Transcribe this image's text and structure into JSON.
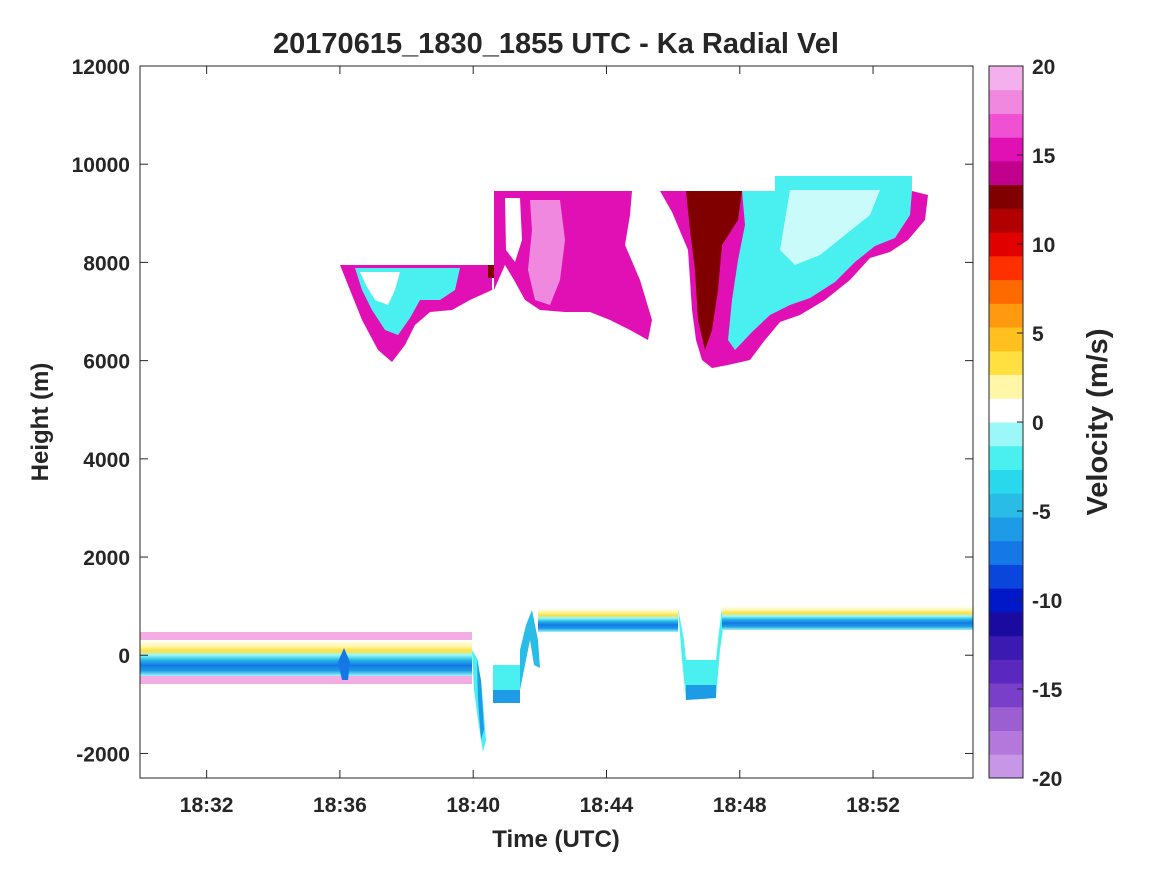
{
  "chart_data": {
    "type": "heatmap",
    "title": "20170615_1830_1855 UTC - Ka Radial Vel",
    "xlabel": "Time (UTC)",
    "ylabel": "Height (m)",
    "xlim": [
      "18:30",
      "18:55"
    ],
    "ylim": [
      -2500,
      12000
    ],
    "xticks": [
      "18:32",
      "18:36",
      "18:40",
      "18:44",
      "18:48",
      "18:52"
    ],
    "yticks": [
      -2000,
      0,
      2000,
      4000,
      6000,
      8000,
      10000,
      12000
    ],
    "grid": false,
    "colorbar": {
      "label": "Velocity (m/s)",
      "range": [
        -20,
        20
      ],
      "ticks": [
        -20,
        -15,
        -10,
        -5,
        0,
        5,
        10,
        15,
        20
      ],
      "colors": [
        "#c896e6",
        "#b478dc",
        "#9b5fd2",
        "#7a3fc8",
        "#5a28be",
        "#3a1ab0",
        "#1a0aa0",
        "#0018c8",
        "#0a46dc",
        "#1478e6",
        "#1e9be6",
        "#28bce6",
        "#2ad8ee",
        "#4af0f0",
        "#9cf8f8",
        "#ffffff",
        "#fff6a8",
        "#ffe040",
        "#ffc020",
        "#ff9a10",
        "#ff6a00",
        "#ff3000",
        "#e00000",
        "#b00000",
        "#800000",
        "#c0008c",
        "#e010b4",
        "#f050d2",
        "#f088e0",
        "#f4b0ec"
      ]
    },
    "features": [
      {
        "name": "boundary layer band",
        "t": [
          "18:30",
          "18:40"
        ],
        "height_range": [
          -500,
          500
        ]
      },
      {
        "name": "boundary layer band",
        "t": [
          "18:41",
          "18:55"
        ],
        "height_range": [
          500,
          900
        ]
      },
      {
        "name": "upper cloud layer",
        "t": [
          "18:36",
          "18:54"
        ],
        "height_range": [
          5900,
          9700
        ]
      }
    ]
  }
}
